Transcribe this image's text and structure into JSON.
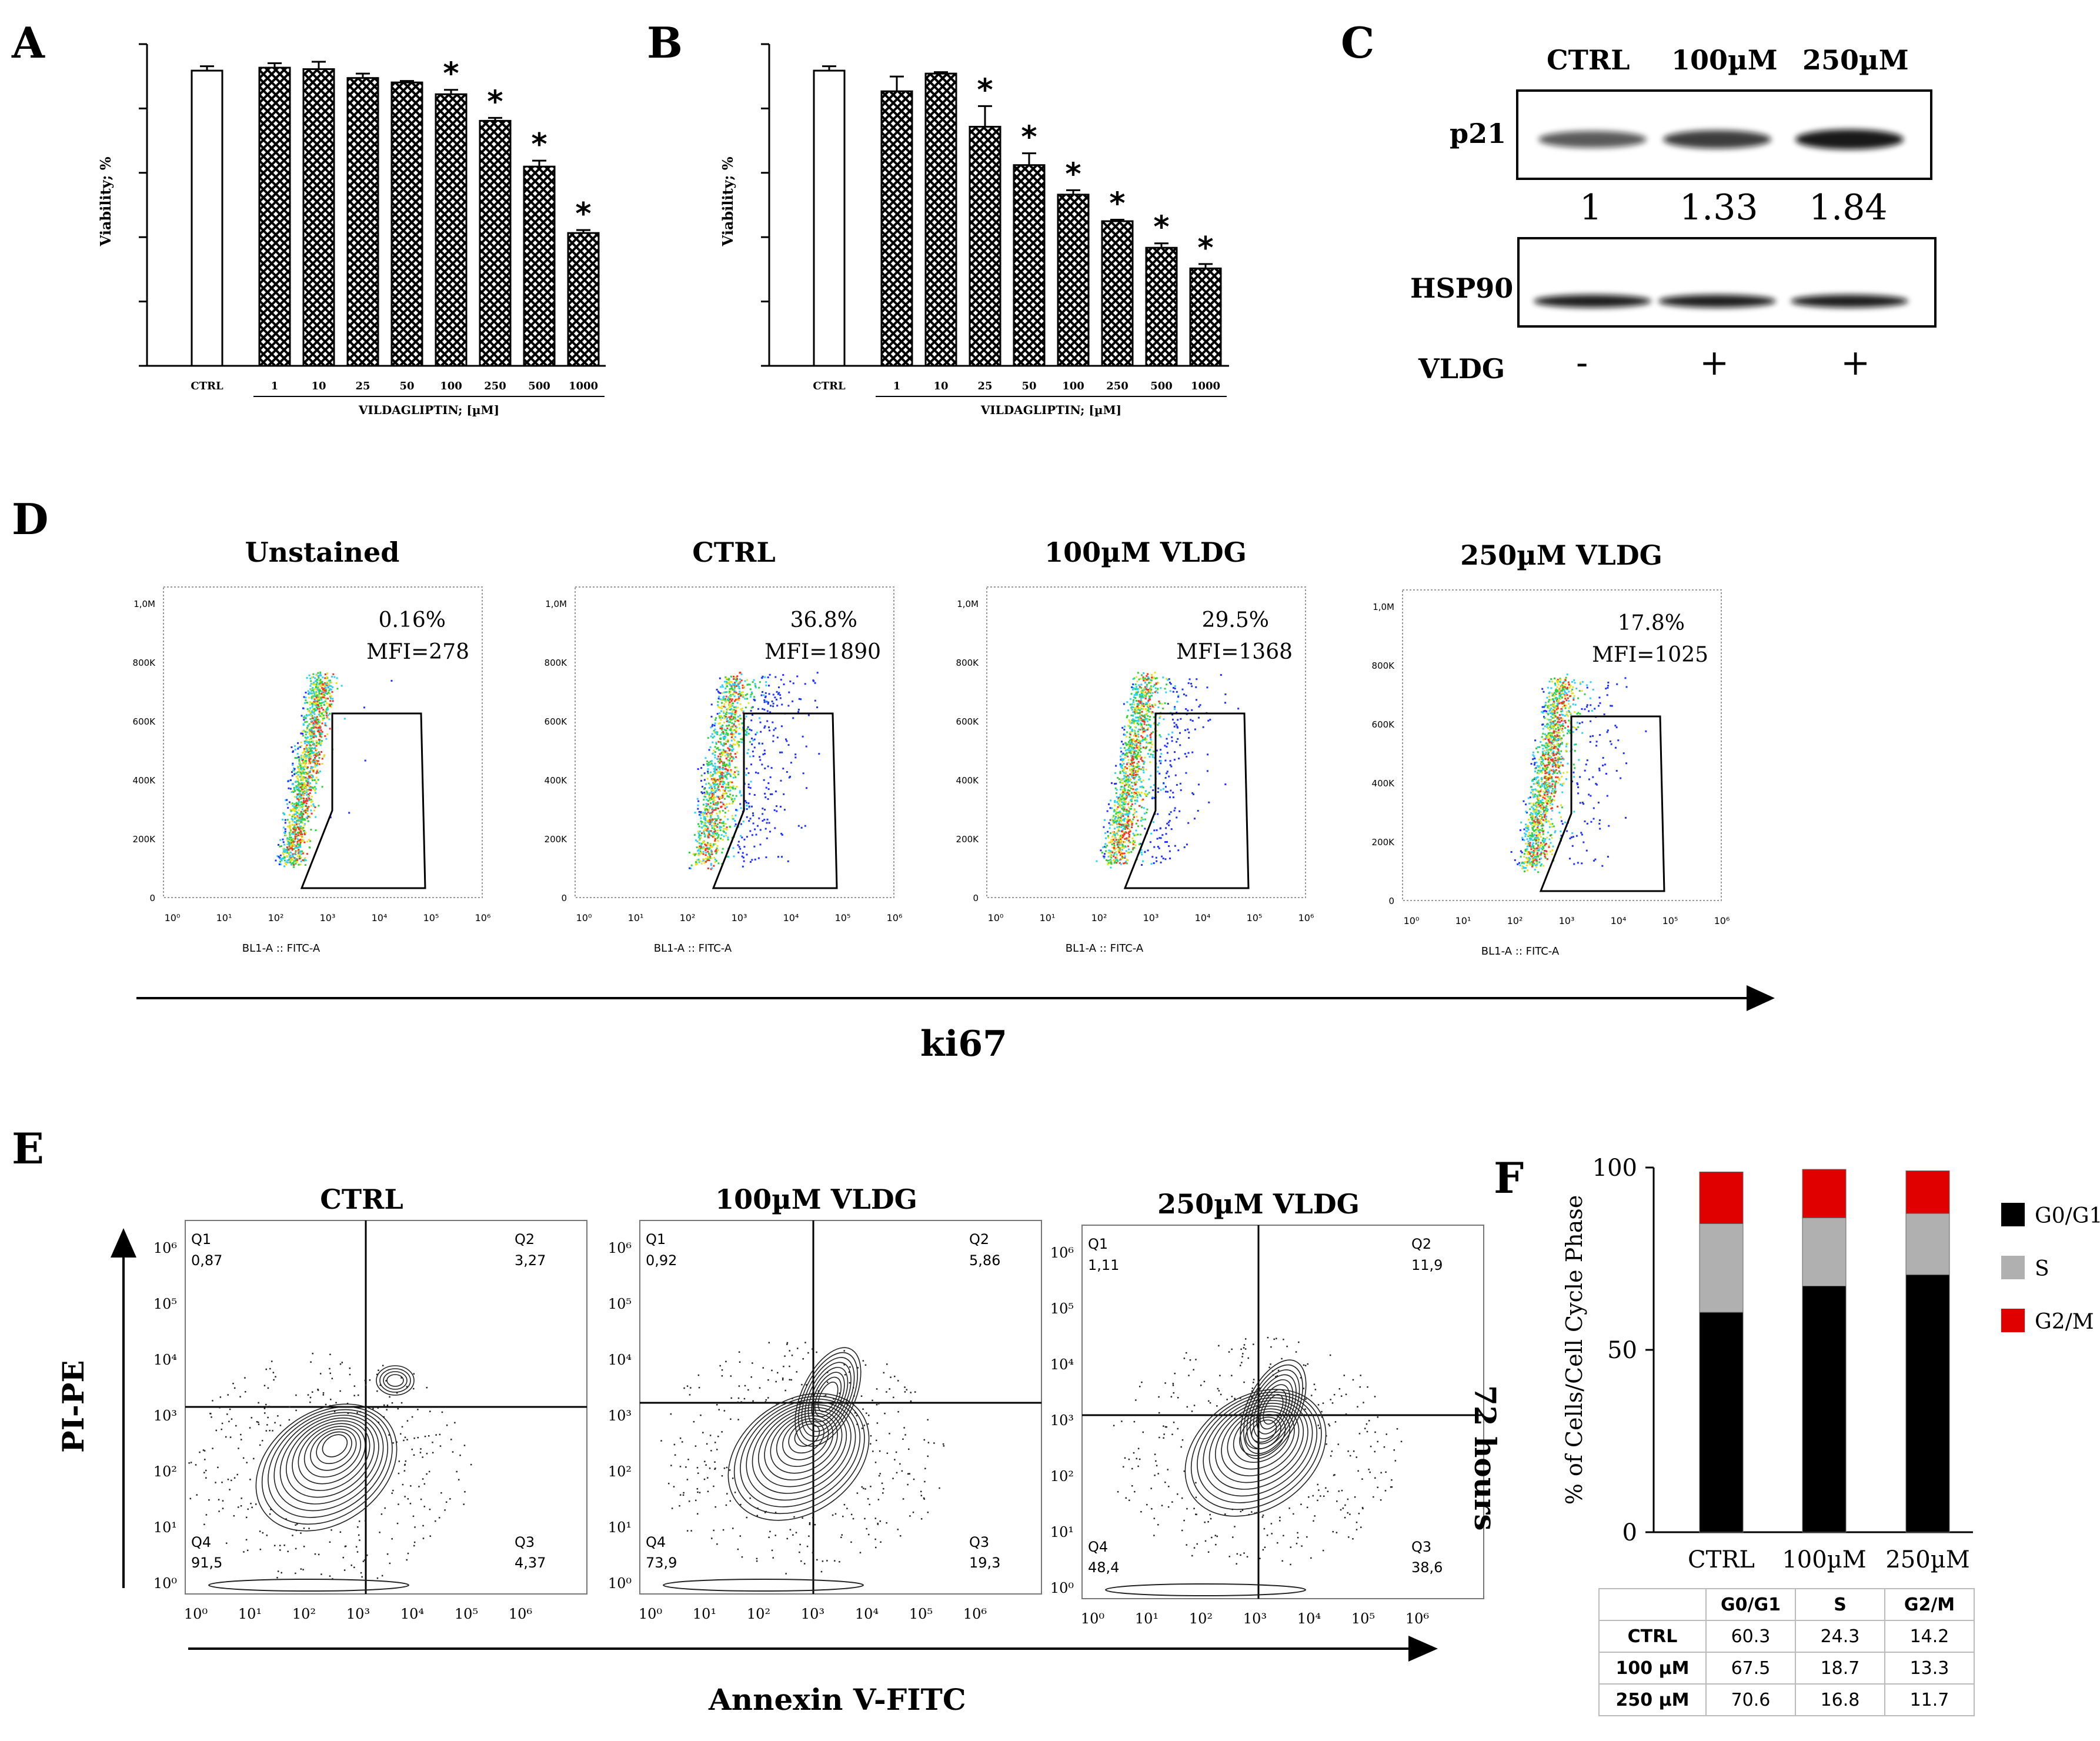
{
  "panels": {
    "A": "A",
    "B": "B",
    "C": "C",
    "D": "D",
    "E": "E",
    "F": "F"
  },
  "viability": {
    "ylabel": "Viability; %",
    "xlabel": "VILDAGLIPTIN; [µM]",
    "star": "*",
    "colors": {
      "ctrl": "#ffffff",
      "treated": "#000000"
    }
  },
  "chart_data": [
    {
      "id": "A",
      "type": "bar",
      "title": "",
      "categories": [
        "CTRL",
        "1",
        "10",
        "25",
        "50",
        "100",
        "250",
        "500",
        "1000"
      ],
      "values": [
        100,
        101,
        100.5,
        97.5,
        96,
        92,
        83,
        67.5,
        45
      ],
      "errors": [
        1.5,
        1.5,
        2.5,
        1.5,
        0.5,
        1.5,
        1.0,
        2.0,
        1.0
      ],
      "significant": [
        false,
        false,
        false,
        false,
        false,
        true,
        true,
        true,
        true
      ],
      "xlabel": "VILDAGLIPTIN; [µM]",
      "ylabel": "Viability; %",
      "ylim": [
        0,
        105
      ]
    },
    {
      "id": "B",
      "type": "bar",
      "title": "",
      "categories": [
        "CTRL",
        "1",
        "10",
        "25",
        "50",
        "100",
        "250",
        "500",
        "1000"
      ],
      "values": [
        100,
        93,
        99,
        81,
        68,
        58,
        49,
        40,
        33
      ],
      "errors": [
        1.5,
        5.0,
        0.5,
        7.0,
        4.0,
        1.5,
        0.5,
        1.5,
        1.5
      ],
      "significant": [
        false,
        false,
        false,
        true,
        true,
        true,
        true,
        true,
        true
      ],
      "xlabel": "VILDAGLIPTIN; [µM]",
      "ylabel": "Viability; %",
      "ylim": [
        0,
        105
      ]
    },
    {
      "id": "F",
      "type": "bar",
      "stacked": true,
      "categories": [
        "CTRL",
        "100µM",
        "250µM"
      ],
      "series": [
        {
          "name": "G0/G1",
          "color": "#000000",
          "values": [
            60.3,
            67.5,
            70.6
          ]
        },
        {
          "name": "S",
          "color": "#b0b0b0",
          "values": [
            24.3,
            18.7,
            16.8
          ]
        },
        {
          "name": "G2/M",
          "color": "#e00000",
          "values": [
            14.2,
            13.3,
            11.7
          ]
        }
      ],
      "ylabel": "% of Cells/Cell Cycle Phase",
      "ylim": [
        0,
        100
      ],
      "yticks": [
        0,
        50,
        100
      ],
      "legend": "right"
    }
  ],
  "western": {
    "lanes": [
      "CTRL",
      "100µM",
      "250µM"
    ],
    "p21_label": "p21",
    "hsp90_label": "HSP90",
    "quant": [
      "1",
      "1.33",
      "1.84"
    ],
    "band_intensity": [
      0.55,
      0.75,
      1.0
    ],
    "treatment_label": "VLDG",
    "treatment": [
      "-",
      "+",
      "+"
    ]
  },
  "flow": {
    "plots": [
      {
        "title": "Unstained",
        "pct": "0.16%",
        "mfi": "MFI=278"
      },
      {
        "title": "CTRL",
        "pct": "36.8%",
        "mfi": "MFI=1890"
      },
      {
        "title": "100µM VLDG",
        "pct": "29.5%",
        "mfi": "MFI=1368"
      },
      {
        "title": "250µM VLDG",
        "pct": "17.8%",
        "mfi": "MFI=1025"
      }
    ],
    "yticks": [
      "1,0M",
      "800K",
      "600K",
      "400K",
      "200K",
      "0"
    ],
    "xaxis": "BL1-A :: FITC-A",
    "arrow_label": "ki67"
  },
  "apoptosis": {
    "plots": [
      {
        "title": "CTRL",
        "q1": "0,87",
        "q2": "3,27",
        "q3": "4,37",
        "q4": "91,5"
      },
      {
        "title": "100µM VLDG",
        "q1": "0,92",
        "q2": "5,86",
        "q3": "19,3",
        "q4": "73,9"
      },
      {
        "title": "250µM VLDG",
        "q1": "1,11",
        "q2": "11,9",
        "q3": "38,6",
        "q4": "48,4"
      }
    ],
    "quad_names": {
      "q1": "Q1",
      "q2": "Q2",
      "q3": "Q3",
      "q4": "Q4"
    },
    "yaxis": "PI-PE",
    "xaxis": "Annexin V-FITC",
    "time": "72 hours"
  },
  "cycle_table": {
    "headers": [
      "G0/G1",
      "S",
      "G2/M"
    ],
    "rows": [
      {
        "label": "CTRL",
        "values": [
          "60.3",
          "24.3",
          "14.2"
        ]
      },
      {
        "label": "100 µM",
        "values": [
          "67.5",
          "18.7",
          "13.3"
        ]
      },
      {
        "label": "250 µM",
        "values": [
          "70.6",
          "16.8",
          "11.7"
        ]
      }
    ]
  }
}
